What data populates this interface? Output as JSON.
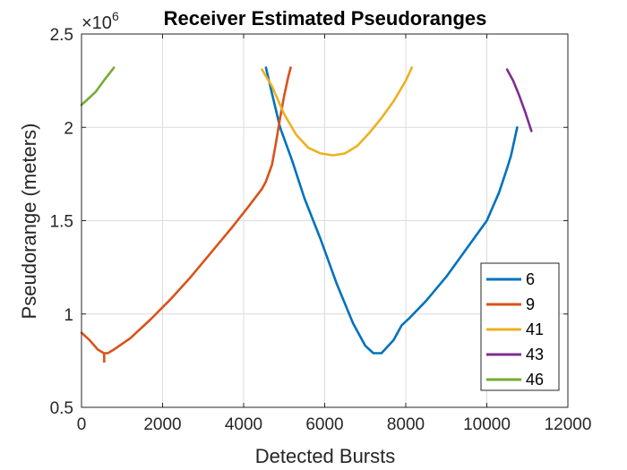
{
  "chart_data": {
    "type": "line",
    "title": "Receiver Estimated Pseudoranges",
    "xlabel": "Detected Bursts",
    "ylabel": "Pseudorange (meters)",
    "y_multiplier": "×10",
    "y_exponent": "6",
    "xlim": [
      0,
      12000
    ],
    "ylim": [
      0.5,
      2.5
    ],
    "x_ticks": [
      0,
      2000,
      4000,
      6000,
      8000,
      10000,
      12000
    ],
    "y_ticks": [
      0.5,
      1,
      1.5,
      2,
      2.5
    ],
    "x_tick_labels": [
      "0",
      "2000",
      "4000",
      "6000",
      "8000",
      "10000",
      "12000"
    ],
    "y_tick_labels": [
      "0.5",
      "1",
      "1.5",
      "2",
      "2.5"
    ],
    "grid": true,
    "legend_position": "bottom-right",
    "series": [
      {
        "name": "6",
        "color": "#0072BD",
        "points": [
          [
            4550,
            2.32
          ],
          [
            4700,
            2.18
          ],
          [
            4900,
            2.0
          ],
          [
            5200,
            1.82
          ],
          [
            5500,
            1.62
          ],
          [
            5900,
            1.4
          ],
          [
            6300,
            1.16
          ],
          [
            6700,
            0.95
          ],
          [
            7000,
            0.83
          ],
          [
            7200,
            0.79
          ],
          [
            7400,
            0.79
          ],
          [
            7700,
            0.86
          ],
          [
            7900,
            0.94
          ],
          [
            8100,
            0.98
          ],
          [
            8500,
            1.07
          ],
          [
            9000,
            1.2
          ],
          [
            9500,
            1.35
          ],
          [
            10000,
            1.5
          ],
          [
            10100,
            1.55
          ],
          [
            10300,
            1.65
          ],
          [
            10500,
            1.78
          ],
          [
            10600,
            1.85
          ],
          [
            10750,
            2.0
          ]
        ]
      },
      {
        "name": "9",
        "color": "#D95319",
        "points": [
          [
            0,
            0.9
          ],
          [
            200,
            0.86
          ],
          [
            400,
            0.81
          ],
          [
            550,
            0.79
          ],
          [
            650,
            0.79
          ],
          [
            800,
            0.81
          ],
          [
            1200,
            0.87
          ],
          [
            1700,
            0.97
          ],
          [
            2200,
            1.08
          ],
          [
            2700,
            1.2
          ],
          [
            3200,
            1.33
          ],
          [
            3700,
            1.46
          ],
          [
            4100,
            1.57
          ],
          [
            4450,
            1.67
          ],
          [
            4550,
            1.71
          ],
          [
            4700,
            1.8
          ],
          [
            4800,
            1.92
          ],
          [
            4900,
            2.05
          ],
          [
            5000,
            2.17
          ],
          [
            5100,
            2.27
          ],
          [
            5160,
            2.32
          ]
        ]
      },
      {
        "name": "41",
        "color": "#EDB120",
        "points": [
          [
            4450,
            2.31
          ],
          [
            4700,
            2.22
          ],
          [
            5000,
            2.07
          ],
          [
            5300,
            1.96
          ],
          [
            5600,
            1.89
          ],
          [
            5900,
            1.86
          ],
          [
            6200,
            1.85
          ],
          [
            6500,
            1.86
          ],
          [
            6800,
            1.9
          ],
          [
            7100,
            1.97
          ],
          [
            7400,
            2.05
          ],
          [
            7700,
            2.14
          ],
          [
            8000,
            2.25
          ],
          [
            8150,
            2.32
          ]
        ]
      },
      {
        "name": "43",
        "color": "#7E2F8E",
        "points": [
          [
            10500,
            2.31
          ],
          [
            10650,
            2.25
          ],
          [
            10800,
            2.17
          ],
          [
            10950,
            2.08
          ],
          [
            11100,
            1.98
          ]
        ]
      },
      {
        "name": "46",
        "color": "#77AC30",
        "points": [
          [
            0,
            2.12
          ],
          [
            150,
            2.15
          ],
          [
            350,
            2.19
          ],
          [
            550,
            2.25
          ],
          [
            800,
            2.32
          ]
        ]
      }
    ],
    "annotation_spike": {
      "series": "9",
      "x": 560,
      "y_from": 0.79,
      "y_to": 0.74
    }
  }
}
